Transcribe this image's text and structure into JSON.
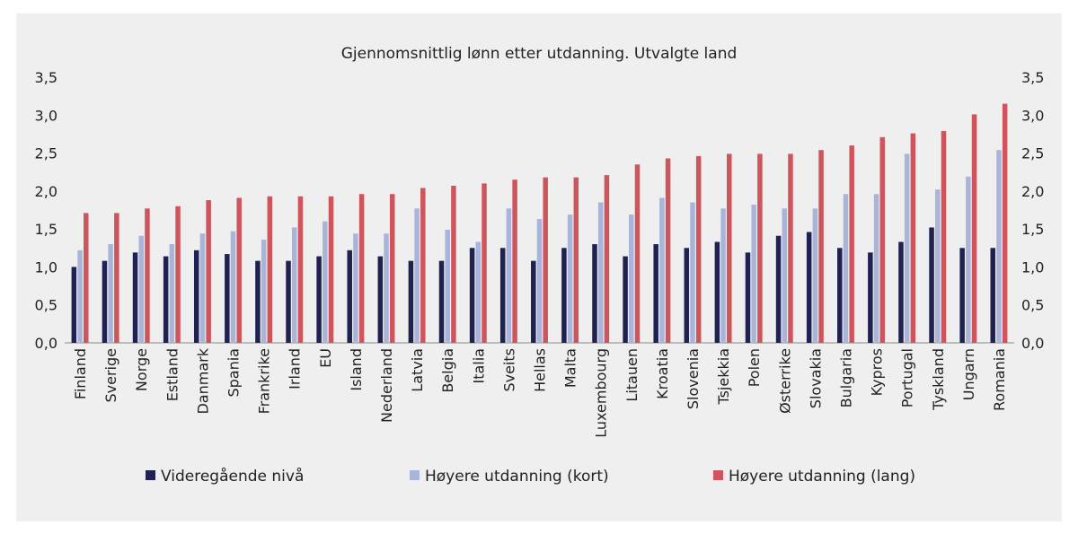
{
  "chart_data": {
    "type": "bar",
    "title": "Gjennomsnittlig lønn etter utdanning. Utvalgte land",
    "xlabel": "",
    "ylabel": "",
    "ylim": [
      0,
      3.5
    ],
    "yticks": [
      "0,0",
      "0,5",
      "1,0",
      "1,5",
      "2,0",
      "2,5",
      "3,0",
      "3,5"
    ],
    "grid": false,
    "legend_position": "bottom",
    "categories": [
      "Finland",
      "Sverige",
      "Norge",
      "Estland",
      "Danmark",
      "Spania",
      "Frankrike",
      "Irland",
      "EU",
      "Island",
      "Nederland",
      "Latvia",
      "Belgia",
      "Italia",
      "Sveits",
      "Hellas",
      "Malta",
      "Luxembourg",
      "Litauen",
      "Kroatia",
      "Slovenia",
      "Tsjekkia",
      "Polen",
      "Østerrike",
      "Slovakia",
      "Bulgaria",
      "Kypros",
      "Portugal",
      "Tyskland",
      "Ungarn",
      "Romania"
    ],
    "series": [
      {
        "name": "Videregående nivå",
        "color": "#1f2151",
        "values": [
          1.0,
          1.08,
          1.19,
          1.14,
          1.22,
          1.17,
          1.08,
          1.08,
          1.14,
          1.22,
          1.14,
          1.08,
          1.08,
          1.25,
          1.25,
          1.08,
          1.25,
          1.3,
          1.14,
          1.3,
          1.25,
          1.33,
          1.19,
          1.41,
          1.46,
          1.25,
          1.19,
          1.33,
          1.52,
          1.25,
          1.25
        ]
      },
      {
        "name": "Høyere utdanning (kort)",
        "color": "#a9b4da",
        "values": [
          1.22,
          1.3,
          1.41,
          1.3,
          1.44,
          1.47,
          1.36,
          1.52,
          1.6,
          1.44,
          1.44,
          1.77,
          1.49,
          1.33,
          1.77,
          1.63,
          1.69,
          1.85,
          1.69,
          1.91,
          1.85,
          1.77,
          1.82,
          1.77,
          1.77,
          1.96,
          1.96,
          2.49,
          2.02,
          2.19,
          2.54
        ]
      },
      {
        "name": "Høyere utdanning (lang)",
        "color": "#cf555d",
        "values": [
          1.71,
          1.71,
          1.77,
          1.8,
          1.88,
          1.91,
          1.93,
          1.93,
          1.93,
          1.96,
          1.96,
          2.04,
          2.07,
          2.1,
          2.15,
          2.18,
          2.18,
          2.21,
          2.35,
          2.43,
          2.46,
          2.49,
          2.49,
          2.49,
          2.54,
          2.6,
          2.71,
          2.76,
          2.79,
          3.01,
          3.15
        ]
      }
    ]
  }
}
